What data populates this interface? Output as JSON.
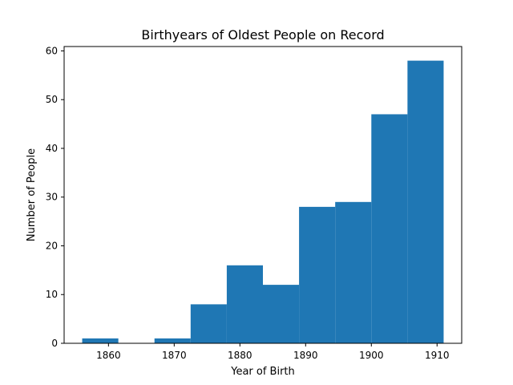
{
  "chart_data": {
    "type": "bar",
    "title": "Birthyears of Oldest People on Record",
    "xlabel": "Year of Birth",
    "ylabel": "Number of People",
    "bins": [
      {
        "start": 1856,
        "end": 1861.5,
        "count": 1
      },
      {
        "start": 1861.5,
        "end": 1867,
        "count": 0
      },
      {
        "start": 1867,
        "end": 1872.5,
        "count": 1
      },
      {
        "start": 1872.5,
        "end": 1878,
        "count": 8
      },
      {
        "start": 1878,
        "end": 1883.5,
        "count": 16
      },
      {
        "start": 1883.5,
        "end": 1889,
        "count": 12
      },
      {
        "start": 1889,
        "end": 1894.5,
        "count": 28
      },
      {
        "start": 1894.5,
        "end": 1900,
        "count": 29
      },
      {
        "start": 1900,
        "end": 1905.5,
        "count": 47
      },
      {
        "start": 1905.5,
        "end": 1911,
        "count": 58
      }
    ],
    "xlim": [
      1853.25,
      1913.75
    ],
    "ylim": [
      0,
      60.9
    ],
    "xticks": [
      1860,
      1870,
      1880,
      1890,
      1900,
      1910
    ],
    "yticks": [
      0,
      10,
      20,
      30,
      40,
      50,
      60
    ],
    "bar_color": "#1f77b4",
    "grid": false,
    "legend": "none"
  }
}
